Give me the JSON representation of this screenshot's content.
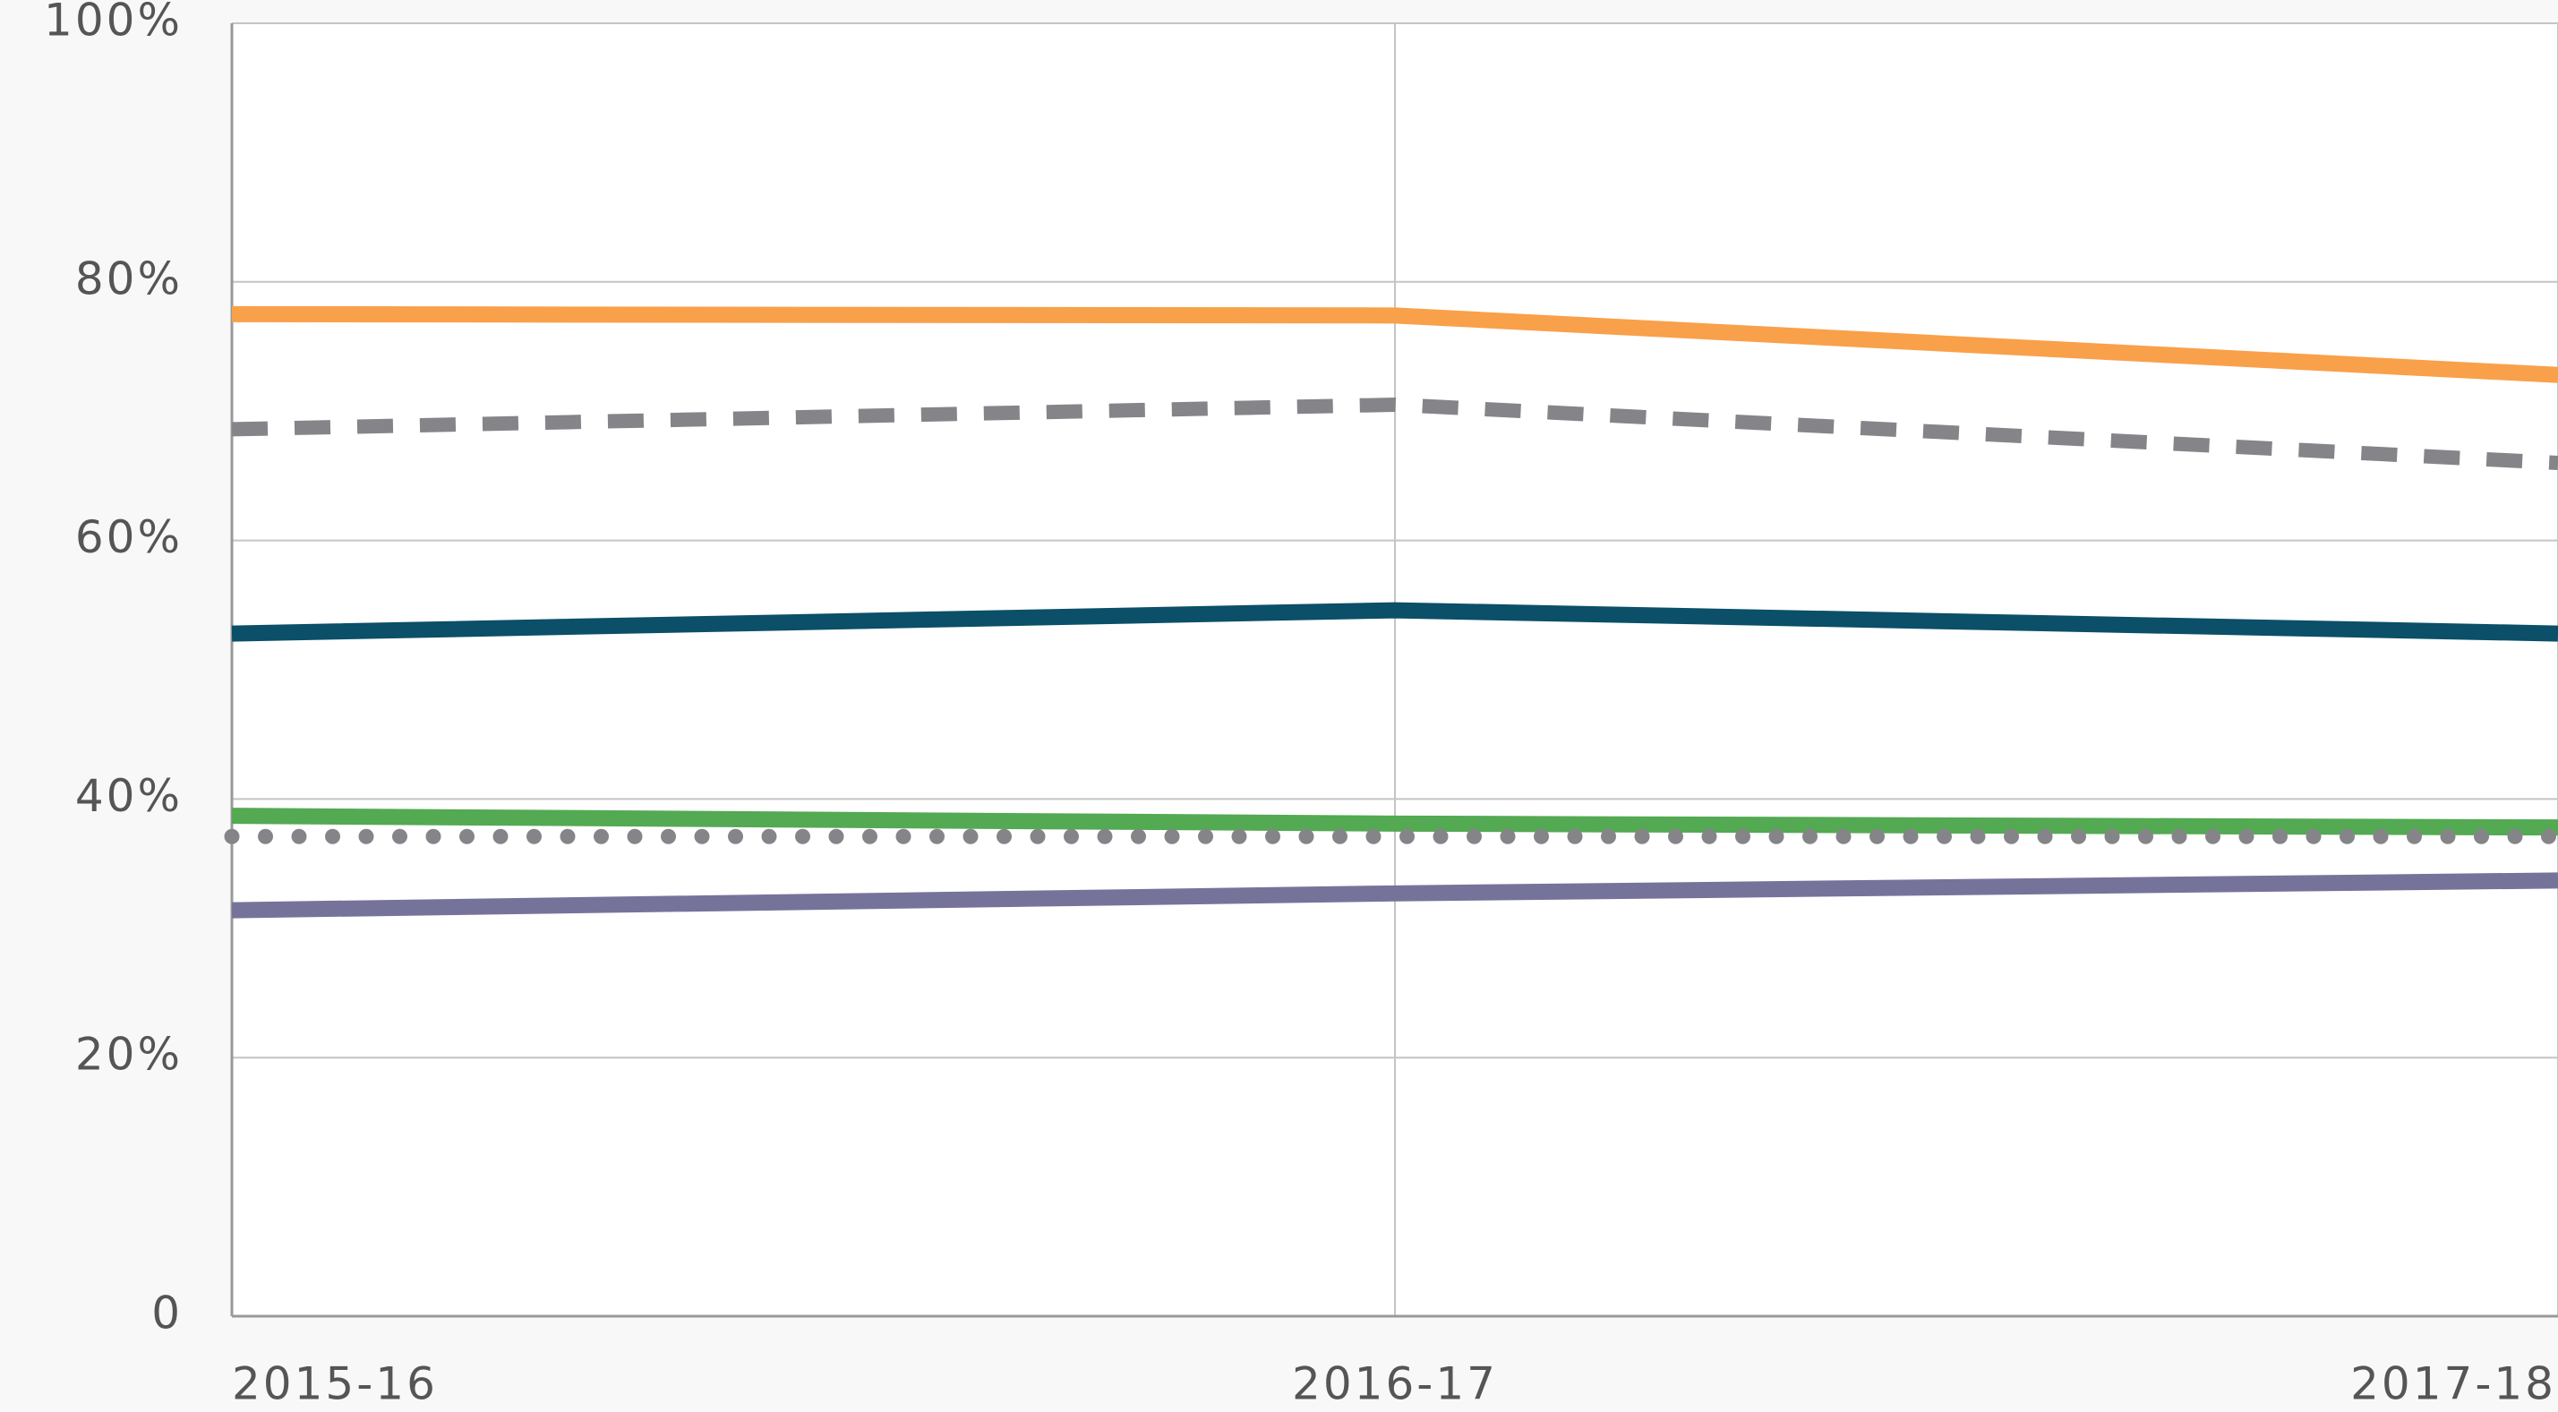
{
  "chart_data": {
    "type": "line",
    "categories": [
      "2015-16",
      "2016-17",
      "2017-18"
    ],
    "series": [
      {
        "color": "#f9a04a",
        "dash": "solid",
        "values": [
          77.5,
          77.4,
          72.8
        ]
      },
      {
        "color": "#858589",
        "dash": "dashed",
        "values": [
          68.6,
          70.5,
          66
        ]
      },
      {
        "color": "#0b4f68",
        "dash": "solid",
        "values": [
          52.8,
          54.6,
          52.8
        ]
      },
      {
        "color": "#54a953",
        "dash": "solid",
        "values": [
          38.7,
          38.1,
          37.8
        ]
      },
      {
        "color": "#858589",
        "dash": "dotted",
        "values": [
          37.1,
          37.1,
          37.1
        ]
      },
      {
        "color": "#76739b",
        "dash": "solid",
        "values": [
          31.4,
          32.7,
          33.7
        ]
      }
    ],
    "ylim": [
      0,
      100
    ],
    "yticks": [
      0,
      {
        "value": 20,
        "label": "20%"
      },
      {
        "value": 40,
        "label": "40%"
      },
      {
        "value": 60,
        "label": "60%"
      },
      {
        "value": 80,
        "label": "80%"
      },
      {
        "value": 100,
        "label": "100%"
      }
    ],
    "grid": true
  }
}
